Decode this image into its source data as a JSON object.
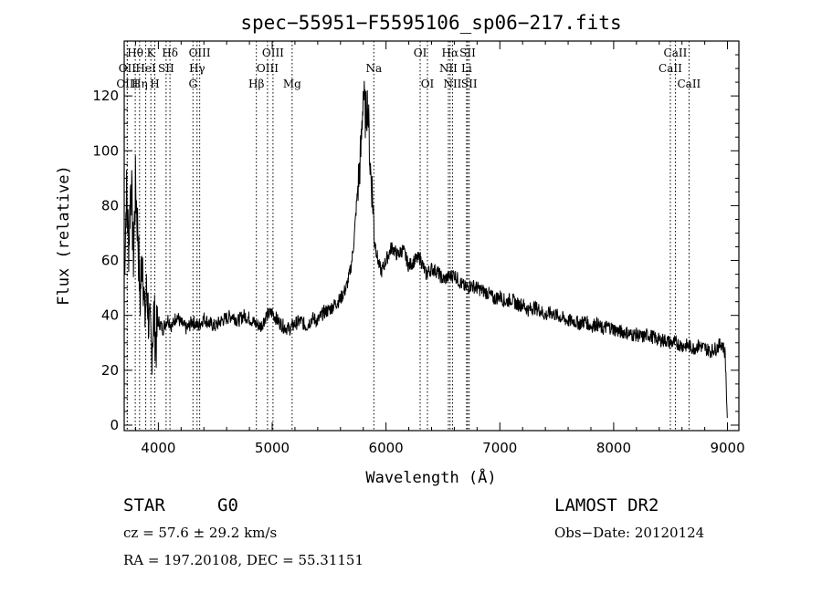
{
  "chart_data": {
    "type": "line",
    "title": "spec−55951−F5595106_sp06−217.fits",
    "xlabel": "Wavelength (Å)",
    "ylabel": "Flux (relative)",
    "xlim": [
      3700,
      9100
    ],
    "ylim": [
      -2,
      140
    ],
    "xticks": [
      4000,
      5000,
      6000,
      7000,
      8000,
      9000
    ],
    "yticks": [
      0,
      20,
      40,
      60,
      80,
      100,
      120
    ],
    "series": [
      {
        "x": [
          3700,
          3720,
          3740,
          3760,
          3780,
          3800,
          3820,
          3840,
          3860,
          3880,
          3900,
          3920,
          3940,
          3960,
          3980,
          4000,
          4040,
          4080,
          4120,
          4160,
          4200,
          4250,
          4300,
          4350,
          4400,
          4450,
          4500,
          4550,
          4600,
          4650,
          4700,
          4750,
          4800,
          4850,
          4900,
          4950,
          5000,
          5050,
          5100,
          5150,
          5200,
          5250,
          5300,
          5350,
          5400,
          5450,
          5500,
          5550,
          5600,
          5650,
          5680,
          5700,
          5720,
          5740,
          5760,
          5780,
          5800,
          5820,
          5840,
          5860,
          5880,
          5900,
          5920,
          5940,
          5960,
          6000,
          6050,
          6100,
          6150,
          6200,
          6250,
          6300,
          6350,
          6400,
          6450,
          6500,
          6550,
          6600,
          6650,
          6700,
          6750,
          6800,
          6850,
          6900,
          6950,
          7000,
          7050,
          7100,
          7150,
          7200,
          7250,
          7300,
          7350,
          7400,
          7450,
          7500,
          7550,
          7600,
          7650,
          7700,
          7750,
          7800,
          7850,
          7900,
          7950,
          8000,
          8050,
          8100,
          8150,
          8200,
          8250,
          8300,
          8350,
          8400,
          8450,
          8500,
          8550,
          8600,
          8650,
          8700,
          8750,
          8800,
          8850,
          8900,
          8950,
          8980,
          9000
        ],
        "y": [
          55,
          85,
          65,
          92,
          60,
          88,
          70,
          45,
          65,
          38,
          50,
          35,
          28,
          40,
          30,
          38,
          35,
          39,
          36,
          40,
          37,
          35,
          38,
          36,
          39,
          37,
          36,
          38,
          39,
          40,
          38,
          40,
          39,
          37,
          36,
          40,
          41,
          38,
          36,
          35,
          37,
          38,
          36,
          39,
          38,
          41,
          42,
          44,
          46,
          50,
          55,
          60,
          68,
          80,
          90,
          100,
          122,
          112,
          118,
          95,
          85,
          68,
          62,
          58,
          56,
          60,
          65,
          62,
          64,
          58,
          60,
          61,
          55,
          57,
          56,
          53,
          54,
          55,
          52,
          50,
          51,
          50,
          49,
          48,
          46,
          47,
          45,
          46,
          44,
          44,
          42,
          43,
          42,
          40,
          41,
          40,
          39,
          38,
          38,
          37,
          38,
          36,
          37,
          35,
          36,
          35,
          34,
          34,
          33,
          33,
          32,
          33,
          32,
          31,
          31,
          30,
          30,
          29,
          29,
          28,
          29,
          28,
          27,
          28,
          30,
          26,
          0
        ]
      }
    ],
    "lines": [
      {
        "label": "Hθ",
        "x": 3797,
        "row": 0
      },
      {
        "label": "OII",
        "x": 3727,
        "row": 1
      },
      {
        "label": "OIII",
        "x": 3727,
        "row": 2
      },
      {
        "label": "HeI",
        "x": 3889,
        "row": 1
      },
      {
        "label": "Hη",
        "x": 3835,
        "row": 2
      },
      {
        "label": "K",
        "x": 3934,
        "row": 0
      },
      {
        "label": "SII",
        "x": 4068,
        "row": 1
      },
      {
        "label": "H",
        "x": 3969,
        "row": 2
      },
      {
        "label": "Hδ",
        "x": 4102,
        "row": 0
      },
      {
        "label": "OIII",
        "x": 4363,
        "row": 0
      },
      {
        "label": "Hγ",
        "x": 4340,
        "row": 1
      },
      {
        "label": "G",
        "x": 4304,
        "row": 2
      },
      {
        "label": "OIII",
        "x": 5007,
        "row": 0
      },
      {
        "label": "OIII",
        "x": 4959,
        "row": 1
      },
      {
        "label": "Hβ",
        "x": 4861,
        "row": 2
      },
      {
        "label": "Mg",
        "x": 5175,
        "row": 2
      },
      {
        "label": "Na",
        "x": 5893,
        "row": 1
      },
      {
        "label": "OI",
        "x": 6300,
        "row": 0
      },
      {
        "label": "OI",
        "x": 6364,
        "row": 2
      },
      {
        "label": "Hα",
        "x": 6563,
        "row": 0
      },
      {
        "label": "SII",
        "x": 6717,
        "row": 0
      },
      {
        "label": "NII",
        "x": 6548,
        "row": 1
      },
      {
        "label": "Li",
        "x": 6708,
        "row": 1
      },
      {
        "label": "NII",
        "x": 6584,
        "row": 2
      },
      {
        "label": "SII",
        "x": 6731,
        "row": 2
      },
      {
        "label": "CaII",
        "x": 8542,
        "row": 0
      },
      {
        "label": "CaII",
        "x": 8498,
        "row": 1
      },
      {
        "label": "CaII",
        "x": 8662,
        "row": 2
      }
    ]
  },
  "info": {
    "class": "STAR",
    "subclass": "G0",
    "survey": "LAMOST DR2",
    "cz": "cz = 57.6 ± 29.2 km/s",
    "obs_date": "Obs−Date: 20120124",
    "radec": "RA = 197.20108, DEC =  55.31151"
  }
}
